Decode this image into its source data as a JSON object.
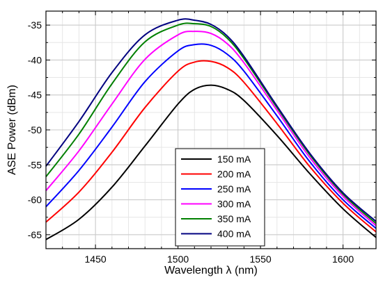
{
  "chart_data": {
    "type": "line",
    "xlabel": "Wavelength λ (nm)",
    "ylabel": "ASE Power (dBm)",
    "xlim": [
      1420,
      1620
    ],
    "ylim": [
      -67,
      -33
    ],
    "xticks": [
      1450,
      1500,
      1550,
      1600
    ],
    "yticks": [
      -65,
      -60,
      -55,
      -50,
      -45,
      -40,
      -35
    ],
    "grid": true,
    "legend_position": "bottom-center",
    "series": [
      {
        "name": "150 mA",
        "color": "#000000",
        "x": [
          1420,
          1440,
          1460,
          1480,
          1500,
          1510,
          1520,
          1530,
          1540,
          1560,
          1580,
          1600,
          1620
        ],
        "y": [
          -65.7,
          -62.8,
          -58.2,
          -52.3,
          -46.3,
          -44.2,
          -43.6,
          -44.2,
          -45.8,
          -50.8,
          -56.3,
          -61.3,
          -65.4
        ]
      },
      {
        "name": "200 mA",
        "color": "#ff0000",
        "x": [
          1420,
          1440,
          1460,
          1480,
          1500,
          1510,
          1520,
          1530,
          1540,
          1560,
          1580,
          1600,
          1620
        ],
        "y": [
          -63.2,
          -58.9,
          -53.2,
          -46.8,
          -41.6,
          -40.3,
          -40.2,
          -41.1,
          -43.2,
          -49.1,
          -55.3,
          -60.5,
          -64.6
        ]
      },
      {
        "name": "250 mA",
        "color": "#0000ff",
        "x": [
          1420,
          1440,
          1460,
          1480,
          1500,
          1510,
          1520,
          1530,
          1540,
          1560,
          1580,
          1600,
          1620
        ],
        "y": [
          -61.0,
          -55.8,
          -49.6,
          -43.1,
          -38.7,
          -37.8,
          -37.9,
          -39.2,
          -41.6,
          -48.0,
          -54.6,
          -60.0,
          -64.1
        ]
      },
      {
        "name": "300 mA",
        "color": "#ff00ff",
        "x": [
          1420,
          1440,
          1460,
          1480,
          1500,
          1510,
          1520,
          1530,
          1540,
          1560,
          1580,
          1600,
          1620
        ],
        "y": [
          -58.7,
          -53.0,
          -46.3,
          -39.9,
          -36.4,
          -35.9,
          -36.2,
          -37.7,
          -40.4,
          -47.2,
          -54.0,
          -59.5,
          -63.7
        ]
      },
      {
        "name": "350 mA",
        "color": "#008000",
        "x": [
          1420,
          1440,
          1460,
          1480,
          1500,
          1510,
          1520,
          1530,
          1540,
          1560,
          1580,
          1600,
          1620
        ],
        "y": [
          -56.7,
          -50.6,
          -43.4,
          -37.4,
          -35.0,
          -34.8,
          -35.2,
          -36.9,
          -39.8,
          -46.8,
          -53.6,
          -59.2,
          -63.4
        ]
      },
      {
        "name": "400 mA",
        "color": "#000080",
        "x": [
          1420,
          1440,
          1460,
          1480,
          1500,
          1510,
          1520,
          1530,
          1540,
          1560,
          1580,
          1600,
          1620
        ],
        "y": [
          -55.2,
          -48.8,
          -41.8,
          -36.4,
          -34.3,
          -34.3,
          -34.9,
          -36.6,
          -39.5,
          -46.6,
          -53.4,
          -59.0,
          -63.1
        ]
      }
    ]
  }
}
